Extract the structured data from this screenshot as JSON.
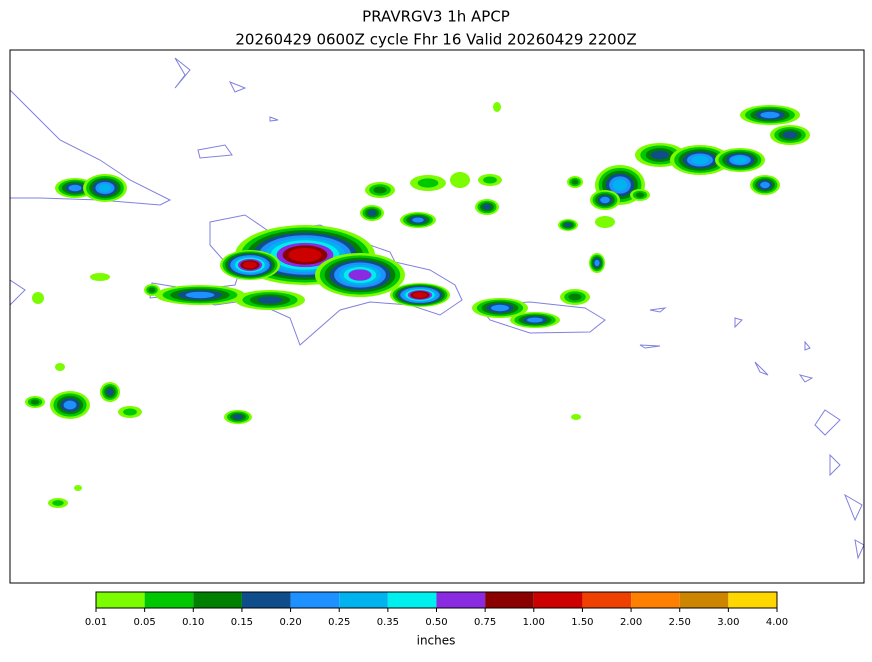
{
  "map": {
    "type": "filled-contour-map",
    "title": [
      "PRAVRGV3 1h APCP",
      "20260429 0600Z cycle Fhr 16 Valid 20260429 2200Z"
    ],
    "colorbar": {
      "label": "inches",
      "ticks": [
        0.01,
        0.05,
        {
          "value": 0.1,
          "label": "0.10"
        },
        0.15,
        {
          "value": 0.2,
          "label": "0.20"
        },
        0.25,
        0.35,
        {
          "value": 0.5,
          "label": "0.50"
        },
        0.75,
        {
          "value": 1,
          "label": "1.00"
        },
        {
          "value": 1.5,
          "label": "1.50"
        },
        {
          "value": 2,
          "label": "2.00"
        },
        {
          "value": 2.5,
          "label": "2.50"
        },
        {
          "value": 3,
          "label": "3.00"
        },
        {
          "value": 4,
          "label": "4.00"
        }
      ],
      "colors": [
        "#7cfc00",
        "#00c800",
        "#008000",
        "#104e8b",
        "#1e90ff",
        "#00b2ee",
        "#00eeee",
        "#8a2be2",
        "#8b0000",
        "#cd0000",
        "#ee4000",
        "#ff7f00",
        "#cd8500",
        "#ffd700"
      ]
    },
    "coast_color": "#8080e0"
  }
}
